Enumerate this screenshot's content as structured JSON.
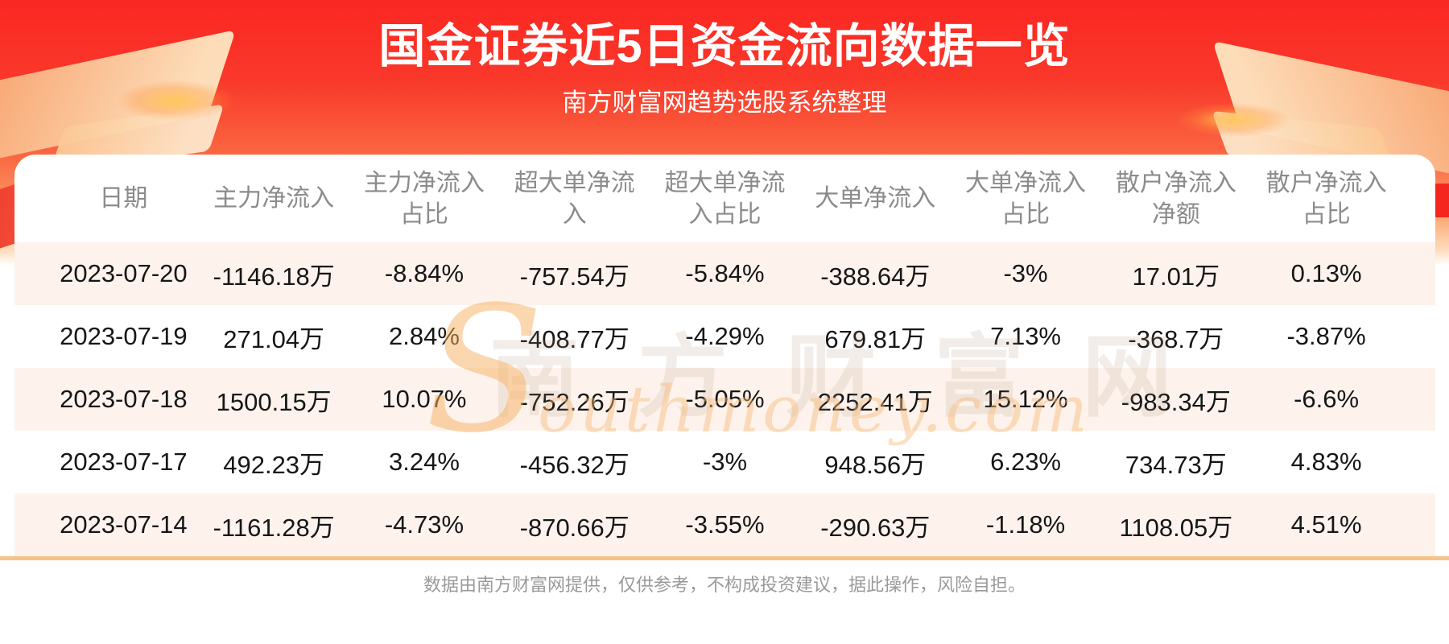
{
  "banner": {
    "title": "国金证券近5日资金流向数据一览",
    "subtitle": "南方财富网趋势选股系统整理"
  },
  "table": {
    "headers_display": [
      "日期",
      "主力净流入",
      "主力净流入\n占比",
      "超大单净流\n入",
      "超大单净流\n入占比",
      "大单净流入",
      "大单净流入\n占比",
      "散户净流入\n净额",
      "散户净流入\n占比"
    ]
  },
  "chart_data": {
    "type": "table",
    "title": "国金证券近5日资金流向数据一览",
    "columns": [
      "日期",
      "主力净流入",
      "主力净流入占比",
      "超大单净流入",
      "超大单净流入占比",
      "大单净流入",
      "大单净流入占比",
      "散户净流入净额",
      "散户净流入占比"
    ],
    "rows": [
      [
        "2023-07-20",
        "-1146.18万",
        "-8.84%",
        "-757.54万",
        "-5.84%",
        "-388.64万",
        "-3%",
        "17.01万",
        "0.13%"
      ],
      [
        "2023-07-19",
        "271.04万",
        "2.84%",
        "-408.77万",
        "-4.29%",
        "679.81万",
        "7.13%",
        "-368.7万",
        "-3.87%"
      ],
      [
        "2023-07-18",
        "1500.15万",
        "10.07%",
        "-752.26万",
        "-5.05%",
        "2252.41万",
        "15.12%",
        "-983.34万",
        "-6.6%"
      ],
      [
        "2023-07-17",
        "492.23万",
        "3.24%",
        "-456.32万",
        "-3%",
        "948.56万",
        "6.23%",
        "734.73万",
        "4.83%"
      ],
      [
        "2023-07-14",
        "-1161.28万",
        "-4.73%",
        "-870.66万",
        "-3.55%",
        "-290.63万",
        "-1.18%",
        "1108.05万",
        "4.51%"
      ]
    ]
  },
  "watermark": {
    "cn": "南方财富网",
    "en_initial": "S",
    "en_rest": "outhmoney.com"
  },
  "footer": {
    "disclaimer": "数据由南方财富网提供，仅供参考，不构成投资建议，据此操作，风险自担。"
  },
  "colors": {
    "banner_red": "#fb2722",
    "banner_orange": "#fca06a",
    "stripe": "#fdf3ec",
    "divider": "#f6c38a",
    "header_text": "#8b8b8b",
    "cell_text": "#161616",
    "footer_text": "#9a9a9a"
  }
}
